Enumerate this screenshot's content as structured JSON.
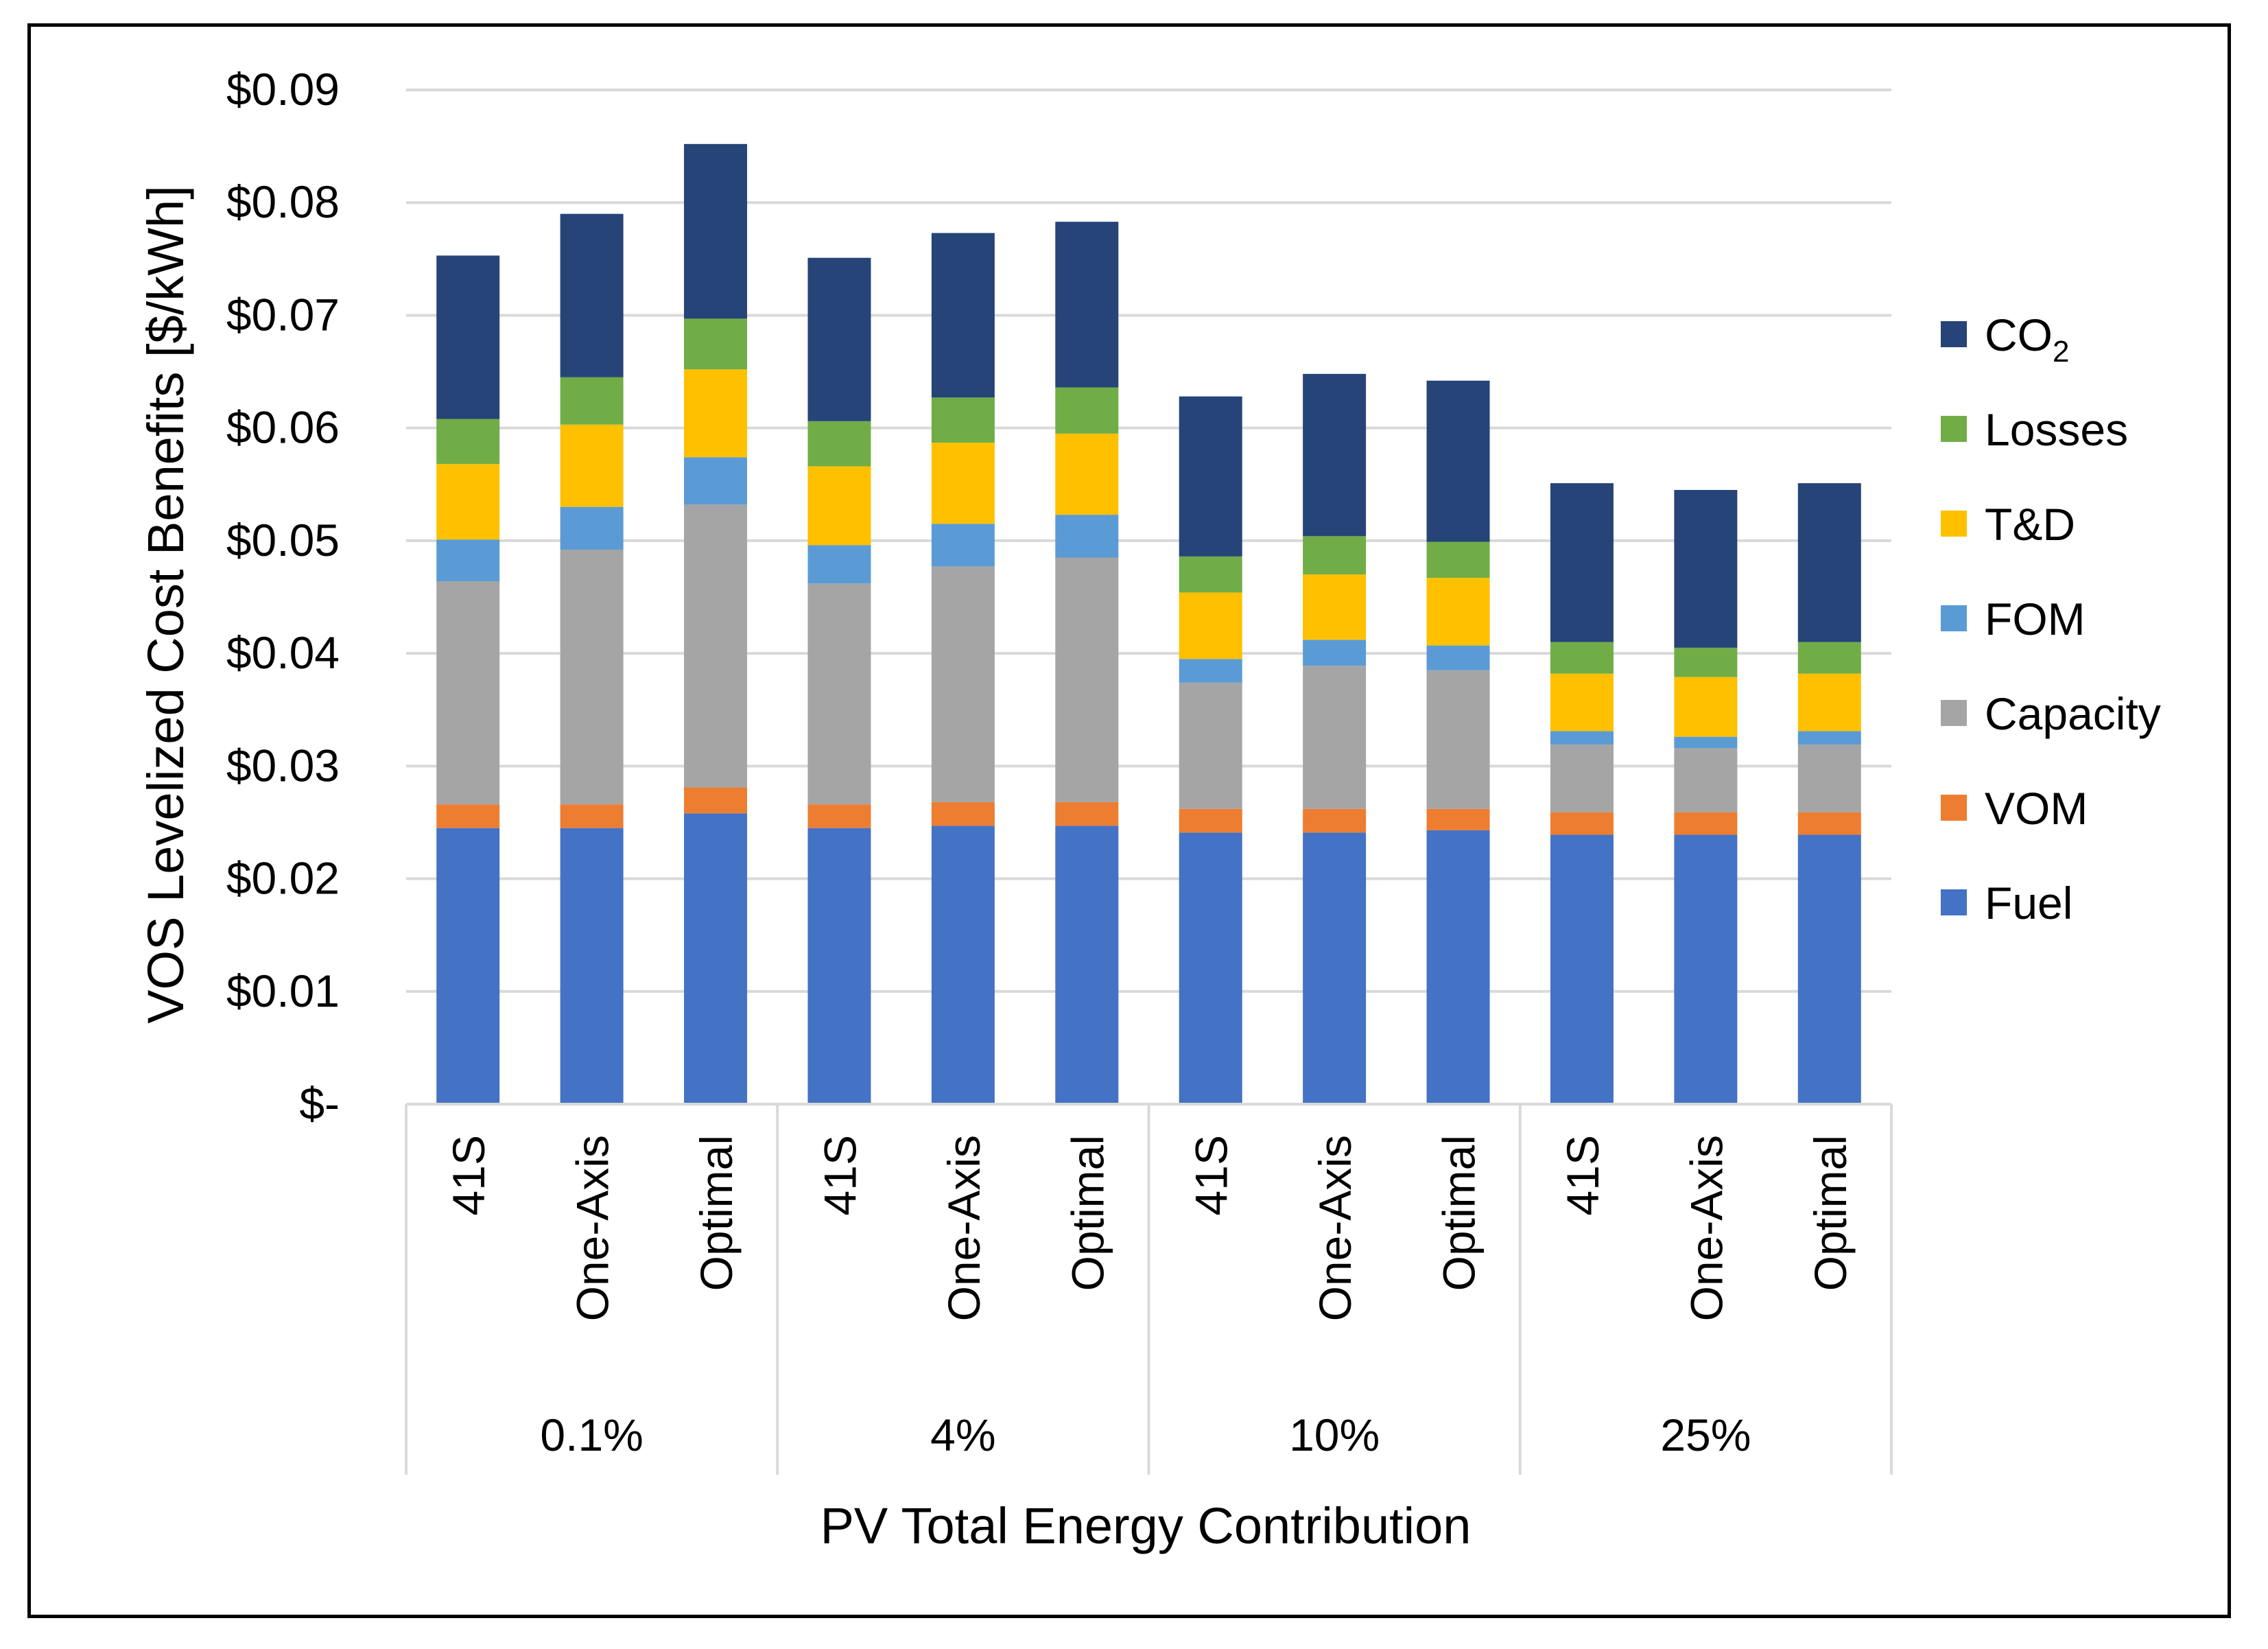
{
  "chart_data": {
    "type": "bar",
    "stacked": true,
    "title": "",
    "xlabel": "PV Total Energy Contribution",
    "ylabel": "VOS Levelized Cost Benefits [$/kWh]",
    "ylim": [
      0,
      0.09
    ],
    "yticks": [
      0,
      0.01,
      0.02,
      0.03,
      0.04,
      0.05,
      0.06,
      0.07,
      0.08,
      0.09
    ],
    "ytick_labels": [
      "$-",
      "$0.01",
      "$0.02",
      "$0.03",
      "$0.04",
      "$0.05",
      "$0.06",
      "$0.07",
      "$0.08",
      "$0.09"
    ],
    "grid": true,
    "legend_position": "right",
    "groups": [
      {
        "label": "0.1%",
        "categories": [
          "41S",
          "One-Axis",
          "Optimal"
        ]
      },
      {
        "label": "4%",
        "categories": [
          "41S",
          "One-Axis",
          "Optimal"
        ]
      },
      {
        "label": "10%",
        "categories": [
          "41S",
          "One-Axis",
          "Optimal"
        ]
      },
      {
        "label": "25%",
        "categories": [
          "41S",
          "One-Axis",
          "Optimal"
        ]
      }
    ],
    "categories": [
      "41S",
      "One-Axis",
      "Optimal",
      "41S",
      "One-Axis",
      "Optimal",
      "41S",
      "One-Axis",
      "Optimal",
      "41S",
      "One-Axis",
      "Optimal"
    ],
    "series": [
      {
        "name": "Fuel",
        "color": "#4472C4",
        "values": [
          0.0245,
          0.0245,
          0.0258,
          0.0245,
          0.0247,
          0.0247,
          0.0241,
          0.0241,
          0.0243,
          0.0239,
          0.0239,
          0.0239
        ]
      },
      {
        "name": "VOM",
        "color": "#ED7D31",
        "values": [
          0.0021,
          0.0021,
          0.0023,
          0.0021,
          0.0021,
          0.0021,
          0.0021,
          0.0021,
          0.0019,
          0.002,
          0.002,
          0.002
        ]
      },
      {
        "name": "Capacity",
        "color": "#A5A5A5",
        "values": [
          0.0198,
          0.0226,
          0.0251,
          0.0196,
          0.0209,
          0.0217,
          0.0112,
          0.0127,
          0.0123,
          0.006,
          0.0057,
          0.006
        ]
      },
      {
        "name": "FOM",
        "color": "#5B9BD5",
        "values": [
          0.0037,
          0.0038,
          0.0042,
          0.0034,
          0.0038,
          0.0038,
          0.0021,
          0.0023,
          0.0022,
          0.0012,
          0.001,
          0.0012
        ]
      },
      {
        "name": "T&D",
        "color": "#FFC000",
        "values": [
          0.0067,
          0.0073,
          0.0078,
          0.007,
          0.0072,
          0.0072,
          0.0059,
          0.0058,
          0.006,
          0.0051,
          0.0053,
          0.0051
        ]
      },
      {
        "name": "Losses",
        "color": "#70AD47",
        "values": [
          0.004,
          0.0042,
          0.0045,
          0.004,
          0.004,
          0.0041,
          0.0032,
          0.0034,
          0.0032,
          0.0028,
          0.0026,
          0.0028
        ]
      },
      {
        "name": "CO",
        "name_subscript": "2",
        "color": "#264478",
        "values": [
          0.0145,
          0.0145,
          0.0155,
          0.0145,
          0.0146,
          0.0147,
          0.0142,
          0.0144,
          0.0143,
          0.0141,
          0.014,
          0.0141
        ]
      }
    ],
    "legend_order": [
      "CO",
      "Losses",
      "T&D",
      "FOM",
      "Capacity",
      "VOM",
      "Fuel"
    ]
  }
}
